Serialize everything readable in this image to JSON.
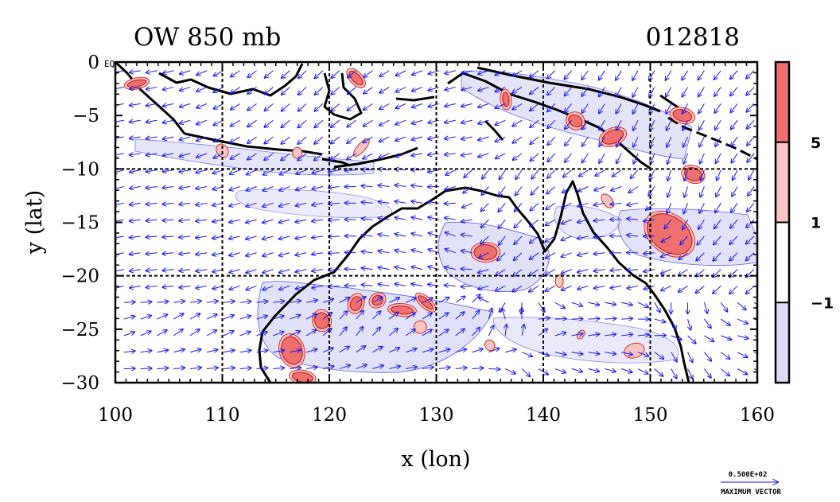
{
  "chart_data": {
    "type": "contour map with wind vectors",
    "title_left": "OW 850 mb",
    "title_right": "012818",
    "xlabel": "x (lon)",
    "ylabel": "y (lat)",
    "xlim": [
      100,
      160
    ],
    "ylim": [
      -30,
      0
    ],
    "x_ticks": [
      100,
      110,
      120,
      130,
      140,
      150,
      160
    ],
    "y_ticks": [
      0,
      -5,
      -10,
      -15,
      -20,
      -25,
      -30
    ],
    "y_tick_labels": [
      "0",
      "−5",
      "−10",
      "−15",
      "−20",
      "−25",
      "−30"
    ],
    "equator_label": "EQ",
    "gridlines_x": [
      110,
      120,
      130,
      140,
      150
    ],
    "gridlines_y": [
      -10,
      -20
    ],
    "colorbar": {
      "levels": [
        -1,
        1,
        5
      ],
      "labels": [
        "−1",
        "1",
        "5"
      ],
      "colors": [
        "#dcdcf8",
        "#ffffff",
        "#f8c4c4",
        "#f07070"
      ]
    },
    "reference_vector": {
      "value_label": "0.500E+02",
      "caption": "MAXIMUM VECTOR"
    },
    "features": [
      {
        "lon": 134.6,
        "lat": -17.8,
        "level": 5
      },
      {
        "lon": 151.8,
        "lat": -16.1,
        "level": 5
      },
      {
        "lon": 116.5,
        "lat": -27.0,
        "level": 5
      },
      {
        "lon": 122.5,
        "lat": -22.6,
        "level": 5
      },
      {
        "lon": 124.5,
        "lat": -22.3,
        "level": 5
      },
      {
        "lon": 126.8,
        "lat": -23.2,
        "level": 5
      },
      {
        "lon": 129.0,
        "lat": -22.5,
        "level": 5
      },
      {
        "lon": 119.3,
        "lat": -24.2,
        "level": 5
      },
      {
        "lon": 128.5,
        "lat": -24.8,
        "level": 1
      },
      {
        "lon": 135.0,
        "lat": -26.5,
        "level": 1
      },
      {
        "lon": 117.5,
        "lat": -29.5,
        "level": 5
      },
      {
        "lon": 122.5,
        "lat": -1.5,
        "level": 5
      },
      {
        "lon": 136.5,
        "lat": -3.5,
        "level": 5
      },
      {
        "lon": 143.0,
        "lat": -5.5,
        "level": 5
      },
      {
        "lon": 146.5,
        "lat": -7.0,
        "level": 5
      },
      {
        "lon": 153.0,
        "lat": -5.0,
        "level": 5
      },
      {
        "lon": 146.0,
        "lat": -13.0,
        "level": 1
      },
      {
        "lon": 141.5,
        "lat": -20.5,
        "level": 1
      },
      {
        "lon": 143.5,
        "lat": -25.5,
        "level": 1
      },
      {
        "lon": 148.5,
        "lat": -27.0,
        "level": 1
      },
      {
        "lon": 154.0,
        "lat": -10.5,
        "level": 5
      },
      {
        "lon": 110.0,
        "lat": -8.3,
        "level": 1
      },
      {
        "lon": 117.0,
        "lat": -8.5,
        "level": 1
      },
      {
        "lon": 123.0,
        "lat": -8.0,
        "level": 1
      },
      {
        "lon": 102.0,
        "lat": -2.0,
        "level": 5
      }
    ]
  }
}
